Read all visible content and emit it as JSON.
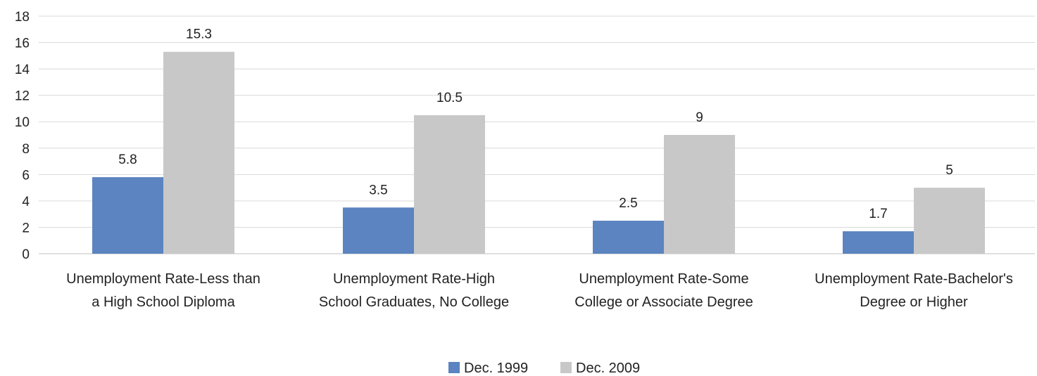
{
  "chart_data": {
    "type": "bar",
    "title": "",
    "xlabel": "",
    "ylabel": "",
    "ylim": [
      0,
      18
    ],
    "yticks": [
      0,
      2,
      4,
      6,
      8,
      10,
      12,
      14,
      16,
      18
    ],
    "grid": true,
    "legend_position": "bottom",
    "categories": [
      [
        "Unemployment Rate-Less than",
        "a High School Diploma"
      ],
      [
        "Unemployment Rate-High",
        "School Graduates, No College"
      ],
      [
        "Unemployment Rate-Some",
        "College or Associate Degree"
      ],
      [
        "Unemployment Rate-Bachelor's",
        "Degree or Higher"
      ]
    ],
    "series": [
      {
        "name": "Dec. 1999",
        "color": "#5b84c0",
        "values": [
          5.8,
          3.5,
          2.5,
          1.7
        ],
        "labels": [
          "5.8",
          "3.5",
          "2.5",
          "1.7"
        ]
      },
      {
        "name": "Dec. 2009",
        "color": "#c8c8c8",
        "values": [
          15.3,
          10.5,
          9,
          5
        ],
        "labels": [
          "15.3",
          "10.5",
          "9",
          "5"
        ]
      }
    ]
  }
}
